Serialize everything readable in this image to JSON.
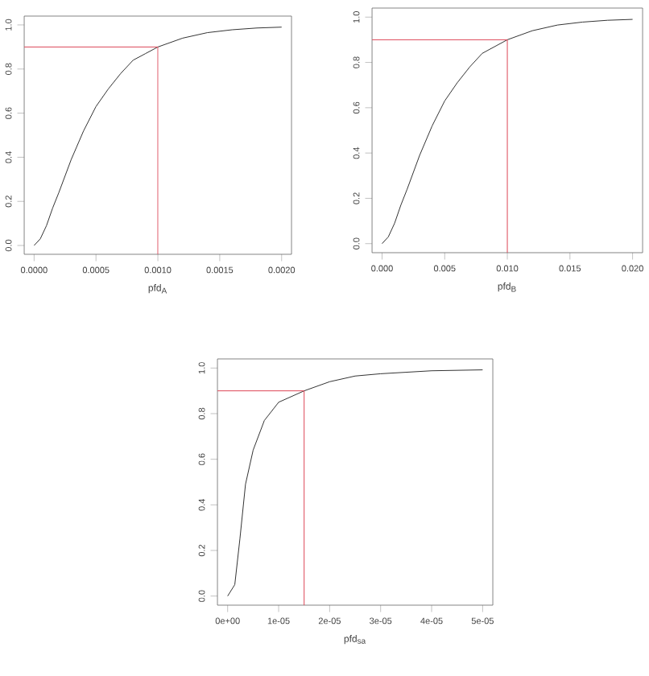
{
  "chart_data": [
    {
      "type": "line",
      "xlabel": "pfd$_{A}$",
      "xlim": [
        -8e-05,
        0.00208
      ],
      "ylim": [
        -0.04,
        1.04
      ],
      "xticks": [
        {
          "value": 0,
          "label": "0.0000"
        },
        {
          "value": 0.0005,
          "label": "0.0005"
        },
        {
          "value": 0.001,
          "label": "0.0010"
        },
        {
          "value": 0.0015,
          "label": "0.0015"
        },
        {
          "value": 0.002,
          "label": "0.0020"
        }
      ],
      "yticks": [
        {
          "value": 0,
          "label": "0.0"
        },
        {
          "value": 0.2,
          "label": "0.2"
        },
        {
          "value": 0.4,
          "label": "0.4"
        },
        {
          "value": 0.6,
          "label": "0.6"
        },
        {
          "value": 0.8,
          "label": "0.8"
        },
        {
          "value": 1,
          "label": "1.0"
        }
      ],
      "series": [
        {
          "color": "#333333",
          "x": [
            0,
            5e-05,
            0.0001,
            0.00015,
            0.0002,
            0.0003,
            0.0004,
            0.0005,
            0.0006,
            0.0007,
            0.0008,
            0.0009,
            0.001,
            0.0012,
            0.0014,
            0.0016,
            0.0018,
            0.002
          ],
          "values": [
            0,
            0.03,
            0.09,
            0.17,
            0.24,
            0.39,
            0.52,
            0.63,
            0.71,
            0.78,
            0.84,
            0.87,
            0.9,
            0.94,
            0.965,
            0.978,
            0.986,
            0.99
          ]
        },
        {
          "color": "#dd4455",
          "x": [
            -8e-05,
            0.001,
            0.001
          ],
          "values": [
            0.9,
            0.9,
            -0.04
          ]
        }
      ]
    },
    {
      "type": "line",
      "xlabel": "pfd$_{B}$",
      "xlim": [
        -0.0008,
        0.0208
      ],
      "ylim": [
        -0.04,
        1.04
      ],
      "xticks": [
        {
          "value": 0,
          "label": "0.000"
        },
        {
          "value": 0.005,
          "label": "0.005"
        },
        {
          "value": 0.01,
          "label": "0.010"
        },
        {
          "value": 0.015,
          "label": "0.015"
        },
        {
          "value": 0.02,
          "label": "0.020"
        }
      ],
      "yticks": [
        {
          "value": 0,
          "label": "0.0"
        },
        {
          "value": 0.2,
          "label": "0.2"
        },
        {
          "value": 0.4,
          "label": "0.4"
        },
        {
          "value": 0.6,
          "label": "0.6"
        },
        {
          "value": 0.8,
          "label": "0.8"
        },
        {
          "value": 1,
          "label": "1.0"
        }
      ],
      "series": [
        {
          "color": "#333333",
          "x": [
            0,
            0.0005,
            0.001,
            0.0015,
            0.002,
            0.003,
            0.004,
            0.005,
            0.006,
            0.007,
            0.008,
            0.009,
            0.01,
            0.012,
            0.014,
            0.016,
            0.018,
            0.02
          ],
          "values": [
            0,
            0.03,
            0.09,
            0.17,
            0.24,
            0.39,
            0.52,
            0.63,
            0.71,
            0.78,
            0.84,
            0.87,
            0.9,
            0.94,
            0.965,
            0.978,
            0.986,
            0.99
          ]
        },
        {
          "color": "#dd4455",
          "x": [
            -0.0008,
            0.01,
            0.01
          ],
          "values": [
            0.9,
            0.9,
            -0.04
          ]
        }
      ]
    },
    {
      "type": "line",
      "xlabel": "pfd$_{sa}$",
      "xlim": [
        -2e-06,
        5.2e-05
      ],
      "ylim": [
        -0.04,
        1.04
      ],
      "xticks": [
        {
          "value": 0,
          "label": "0e+00"
        },
        {
          "value": 1e-05,
          "label": "1e-05"
        },
        {
          "value": 2e-05,
          "label": "2e-05"
        },
        {
          "value": 3e-05,
          "label": "3e-05"
        },
        {
          "value": 4e-05,
          "label": "4e-05"
        },
        {
          "value": 5e-05,
          "label": "5e-05"
        }
      ],
      "yticks": [
        {
          "value": 0,
          "label": "0.0"
        },
        {
          "value": 0.2,
          "label": "0.2"
        },
        {
          "value": 0.4,
          "label": "0.4"
        },
        {
          "value": 0.6,
          "label": "0.6"
        },
        {
          "value": 0.8,
          "label": "0.8"
        },
        {
          "value": 1,
          "label": "1.0"
        }
      ],
      "series": [
        {
          "color": "#333333",
          "x": [
            0,
            1.4e-06,
            2.4e-06,
            3.5e-06,
            5e-06,
            7.2e-06,
            1e-05,
            1.5e-05,
            2e-05,
            2.5e-05,
            3e-05,
            4e-05,
            5e-05
          ],
          "values": [
            0,
            0.05,
            0.25,
            0.49,
            0.64,
            0.77,
            0.85,
            0.9,
            0.94,
            0.965,
            0.975,
            0.988,
            0.992
          ]
        },
        {
          "color": "#dd4455",
          "x": [
            -2e-06,
            1.5e-05,
            1.5e-05
          ],
          "values": [
            0.9,
            0.9,
            -0.04
          ]
        }
      ]
    }
  ]
}
